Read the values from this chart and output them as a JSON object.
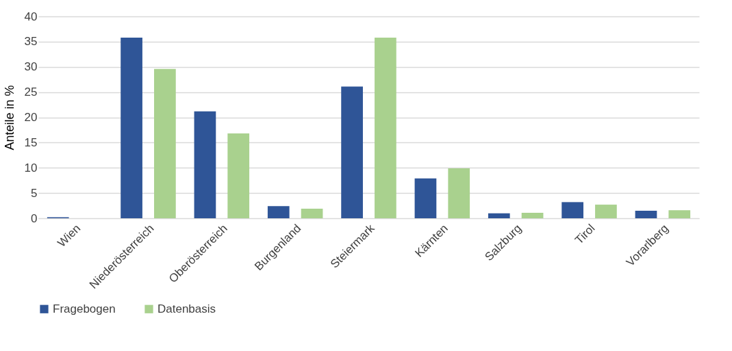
{
  "chart_data": {
    "type": "bar",
    "ylabel": "Anteile in %",
    "categories": [
      "Wien",
      "Niederösterreich",
      "Oberösterreich",
      "Burgenland",
      "Steiermark",
      "Kärnten",
      "Salzburg",
      "Tirol",
      "Vorarlberg"
    ],
    "series": [
      {
        "name": "Fragebogen",
        "color": "#2f5597",
        "values": [
          0.2,
          35.8,
          21.2,
          2.4,
          26.1,
          7.9,
          1.0,
          3.2,
          1.5
        ]
      },
      {
        "name": "Datenbasis",
        "color": "#a9d18e",
        "values": [
          0,
          29.6,
          16.8,
          1.9,
          35.8,
          9.9,
          1.1,
          2.7,
          1.6
        ]
      }
    ],
    "ylim": [
      0,
      40
    ],
    "yticks": [
      0,
      5,
      10,
      15,
      20,
      25,
      30,
      35,
      40
    ],
    "grid": "y",
    "legend": "bottom"
  }
}
